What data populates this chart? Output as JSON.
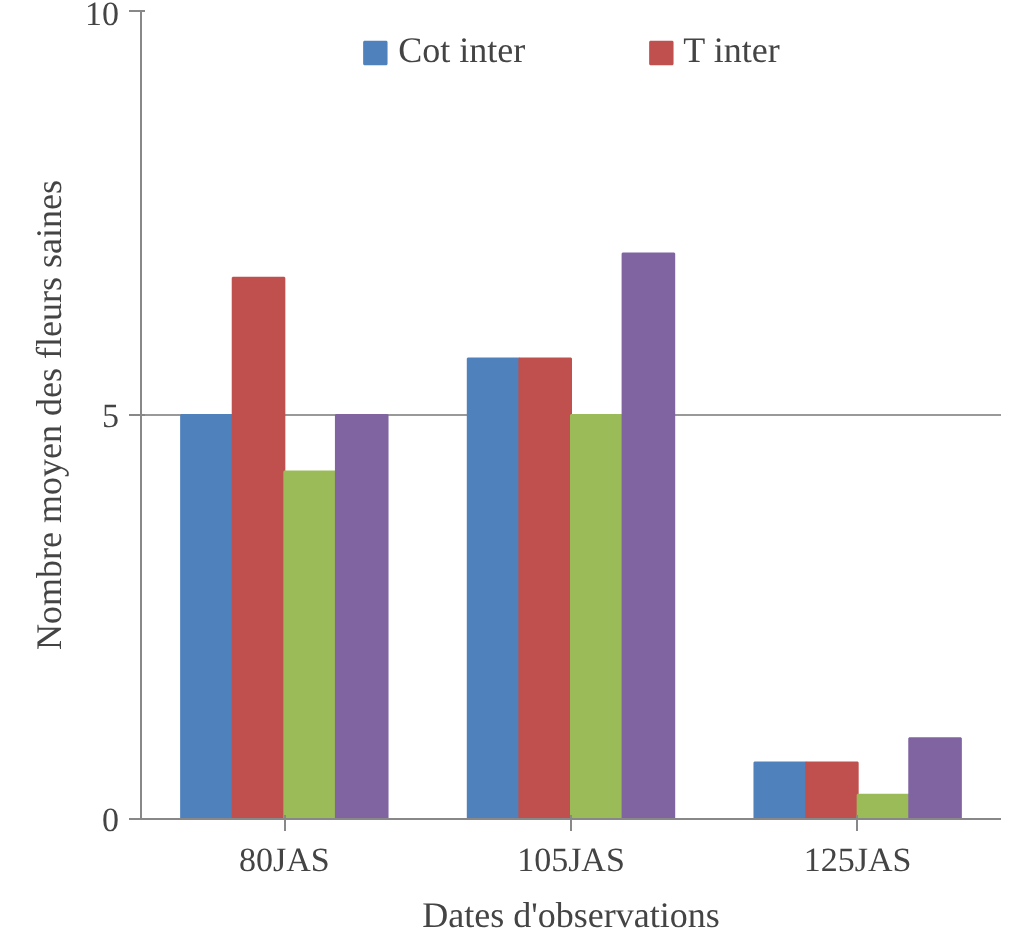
{
  "chart_data": {
    "type": "bar",
    "xlabel": "Dates d'observations",
    "ylabel": "Nombre moyen des fleurs saines",
    "categories": [
      "80JAS",
      "105JAS",
      "125JAS"
    ],
    "series": [
      {
        "name": "Cot inter",
        "color": "#4f81bd",
        "values": [
          5,
          5.7,
          0.7
        ]
      },
      {
        "name": "T inter",
        "color": "#c0504d",
        "values": [
          6.7,
          5.7,
          0.7
        ]
      },
      {
        "color": "#9bbb59",
        "values": [
          4.3,
          5,
          0.3
        ]
      },
      {
        "color": "#8064a2",
        "values": [
          5,
          7,
          1
        ]
      }
    ],
    "ylim": [
      0,
      10
    ],
    "yticks": [
      0,
      5,
      10
    ],
    "grid": "y",
    "legend": "top"
  }
}
